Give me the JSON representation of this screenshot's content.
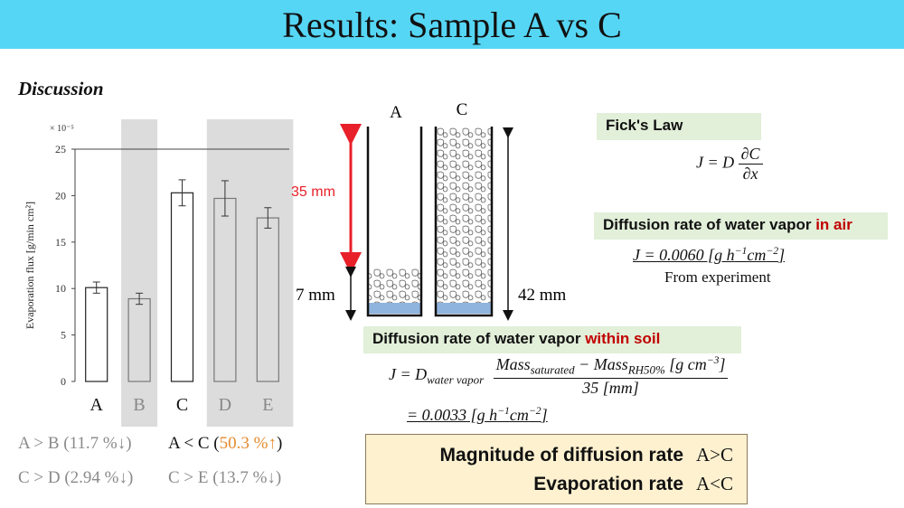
{
  "slide": {
    "title": "Results: Sample A vs C",
    "discussion_label": "Discussion"
  },
  "chart_data": {
    "type": "bar",
    "categories": [
      "A",
      "B",
      "C",
      "D",
      "E"
    ],
    "values": [
      10.1,
      8.9,
      20.3,
      19.7,
      17.6
    ],
    "errors": [
      0.6,
      0.6,
      1.4,
      1.9,
      1.1
    ],
    "shaded_categories": [
      "B",
      "D",
      "E"
    ],
    "ylabel": "Evaporation flux [g/min cm²]",
    "yscale_label": "× 10⁻⁵",
    "ylim": [
      0,
      25
    ],
    "yticks": [
      0,
      5,
      10,
      15,
      20,
      25
    ],
    "grid": false
  },
  "comparisons": {
    "ab": "A > B (11.7 %↓)",
    "ac_prefix": "A < C (",
    "ac_value": "50.3 %↑",
    "ac_suffix": ")",
    "cd": "C > D (2.94 %↓)",
    "ce": "C > E (13.7 %↓)"
  },
  "diagram": {
    "label_a": "A",
    "label_c": "C",
    "gap_label": "35 mm",
    "short_label": "7 mm",
    "tall_label": "42 mm",
    "colors": {
      "water": "#8fb4dd",
      "arrow_red": "#e8202a"
    }
  },
  "ficks_law": {
    "title": "Fick's Law",
    "lhs": "J = D",
    "num": "∂C",
    "den": "∂x"
  },
  "air": {
    "title_prefix": "Diffusion rate of water vapor ",
    "title_highlight": "in air",
    "eq_lhs": "J = 0.0060 [g h",
    "exp1": "−1",
    "eq_mid": "cm",
    "exp2": "−2",
    "eq_end": "]",
    "note": "From experiment"
  },
  "soil": {
    "title_prefix": "Diffusion rate of water vapor ",
    "title_highlight": "within soil",
    "lhs": "J = D",
    "lhs_sub": "water vapor",
    "num_a": "Mass",
    "num_a_sub": "saturated",
    "num_minus": " − Mass",
    "num_b_sub": "RH50%",
    "num_unit": " [g cm",
    "num_exp": "−3",
    "num_close": "]",
    "den": "35 [mm]",
    "result": "= 0.0033 [g h",
    "result_exp1": "−1",
    "result_mid": "cm",
    "result_exp2": "−2",
    "result_end": "]"
  },
  "summary": {
    "row1_label": "Magnitude of diffusion rate",
    "row1_value": "A>C",
    "row2_label": "Evaporation rate",
    "row2_value": "A<C"
  }
}
